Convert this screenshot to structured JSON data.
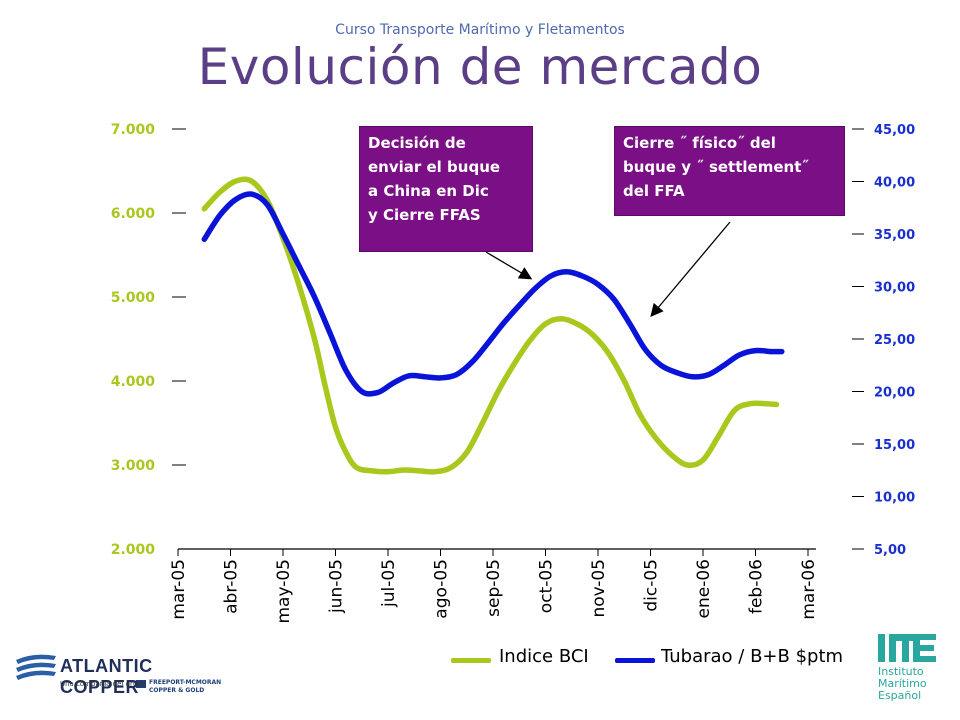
{
  "header": {
    "course": "Curso Transporte Marítimo y Fletamentos",
    "title": "Evolución de mercado"
  },
  "callouts": {
    "left": "Decisión de\nenviar el buque\na China  en Dic\ny Cierre FFAS",
    "right": "Cierre ˝ físico˝ del\nbuque y ˝ settlement˝\ndel FFA"
  },
  "logos": {
    "atlantic_name": "ATLANTIC COPPER",
    "atlantic_sub": "Una compañía del grupo",
    "atlantic_group1": "FREEPORT-MCMORAN",
    "atlantic_group2": "COPPER & GOLD",
    "ime_line1": "Instituto",
    "ime_line2": "Marítimo",
    "ime_line3": "Español"
  },
  "chart_data": {
    "type": "line",
    "x": [
      "mar-05",
      "abr-05",
      "may-05",
      "jun-05",
      "jul-05",
      "ago-05",
      "sep-05",
      "oct-05",
      "nov-05",
      "dic-05",
      "ene-06",
      "feb-06",
      "mar-06"
    ],
    "y_left": {
      "ticks": [
        "2.000",
        "3.000",
        "4.000",
        "5.000",
        "6.000",
        "7.000"
      ],
      "range": [
        2000,
        7000
      ]
    },
    "y_right": {
      "ticks": [
        "5,00",
        "10,00",
        "15,00",
        "20,00",
        "25,00",
        "30,00",
        "35,00",
        "40,00",
        "45,00"
      ],
      "range": [
        5,
        45
      ]
    },
    "series": [
      {
        "name": "Indice BCI",
        "axis": "left",
        "color": "#a8c81e",
        "points": [
          [
            0.5,
            6050
          ],
          [
            0.8,
            6250
          ],
          [
            1.1,
            6380
          ],
          [
            1.4,
            6380
          ],
          [
            1.7,
            6150
          ],
          [
            2.0,
            5700
          ],
          [
            2.3,
            5150
          ],
          [
            2.6,
            4500
          ],
          [
            2.8,
            3950
          ],
          [
            3.0,
            3450
          ],
          [
            3.2,
            3150
          ],
          [
            3.4,
            2970
          ],
          [
            3.7,
            2930
          ],
          [
            4.0,
            2920
          ],
          [
            4.3,
            2940
          ],
          [
            4.6,
            2930
          ],
          [
            4.9,
            2920
          ],
          [
            5.2,
            2970
          ],
          [
            5.5,
            3150
          ],
          [
            5.8,
            3500
          ],
          [
            6.1,
            3880
          ],
          [
            6.4,
            4200
          ],
          [
            6.7,
            4480
          ],
          [
            7.0,
            4680
          ],
          [
            7.3,
            4740
          ],
          [
            7.6,
            4680
          ],
          [
            7.9,
            4550
          ],
          [
            8.2,
            4330
          ],
          [
            8.5,
            4000
          ],
          [
            8.8,
            3600
          ],
          [
            9.1,
            3320
          ],
          [
            9.4,
            3120
          ],
          [
            9.7,
            3000
          ],
          [
            10.0,
            3060
          ],
          [
            10.3,
            3350
          ],
          [
            10.6,
            3650
          ],
          [
            10.9,
            3730
          ],
          [
            11.2,
            3730
          ],
          [
            11.4,
            3720
          ]
        ]
      },
      {
        "name": "Tubarao / B+B  $ptm",
        "axis": "right",
        "color": "#0a14d8",
        "points": [
          [
            0.5,
            34.5
          ],
          [
            0.8,
            36.8
          ],
          [
            1.1,
            38.3
          ],
          [
            1.4,
            38.8
          ],
          [
            1.7,
            37.8
          ],
          [
            2.0,
            35.0
          ],
          [
            2.3,
            32.0
          ],
          [
            2.6,
            29.0
          ],
          [
            2.9,
            25.5
          ],
          [
            3.2,
            22.0
          ],
          [
            3.5,
            20.0
          ],
          [
            3.8,
            19.9
          ],
          [
            4.1,
            20.8
          ],
          [
            4.4,
            21.5
          ],
          [
            4.7,
            21.4
          ],
          [
            5.0,
            21.3
          ],
          [
            5.3,
            21.6
          ],
          [
            5.6,
            22.8
          ],
          [
            5.9,
            24.6
          ],
          [
            6.2,
            26.5
          ],
          [
            6.5,
            28.2
          ],
          [
            6.8,
            29.8
          ],
          [
            7.1,
            31.0
          ],
          [
            7.4,
            31.4
          ],
          [
            7.7,
            31.0
          ],
          [
            8.0,
            30.2
          ],
          [
            8.3,
            28.8
          ],
          [
            8.6,
            26.5
          ],
          [
            8.9,
            24.0
          ],
          [
            9.2,
            22.5
          ],
          [
            9.5,
            21.8
          ],
          [
            9.8,
            21.4
          ],
          [
            10.1,
            21.6
          ],
          [
            10.4,
            22.5
          ],
          [
            10.7,
            23.5
          ],
          [
            11.0,
            23.9
          ],
          [
            11.3,
            23.8
          ],
          [
            11.5,
            23.8
          ]
        ]
      }
    ],
    "legend": "bottom-right",
    "grid": false
  }
}
